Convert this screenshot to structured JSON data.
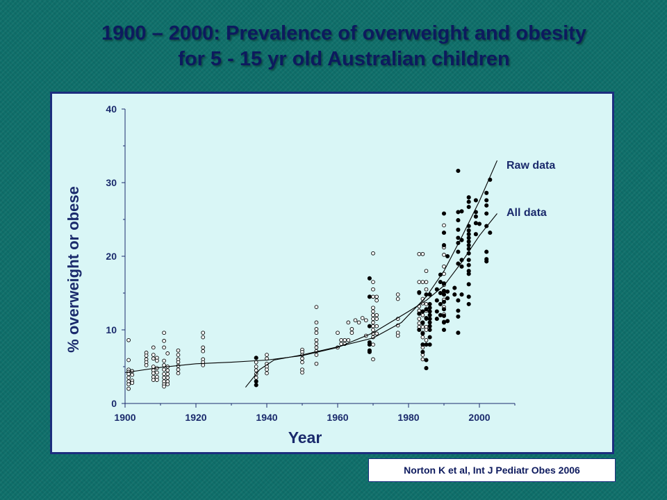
{
  "slide": {
    "title_line1": "1900 – 2000: Prevalence of overweight and obesity",
    "title_line2": "for 5 - 15 yr old Australian children",
    "citation": "Norton K et al, Int J Pediatr Obes 2006"
  },
  "chart_data": {
    "type": "scatter",
    "title": "1900 – 2000: Prevalence of overweight and obesity for 5 - 15 yr old Australian children",
    "xlabel": "Year",
    "ylabel": "% overweight or obese",
    "xlim": [
      1900,
      2010
    ],
    "ylim": [
      0,
      40
    ],
    "x_ticks": [
      1900,
      1920,
      1940,
      1960,
      1980,
      2000
    ],
    "y_ticks": [
      0,
      10,
      20,
      30,
      40
    ],
    "grid": false,
    "colors": {
      "axis": "#1a2a6c",
      "marker": "#000000",
      "curve": "#000000"
    },
    "series": [
      {
        "marker": "open-circle",
        "points": [
          [
            1901,
            8.6
          ],
          [
            1901,
            5.9
          ],
          [
            1901,
            4.6
          ],
          [
            1901,
            4.3
          ],
          [
            1901,
            4.0
          ],
          [
            1901,
            3.5
          ],
          [
            1901,
            3.0
          ],
          [
            1901,
            2.6
          ],
          [
            1901,
            2.0
          ],
          [
            1902,
            4.4
          ],
          [
            1902,
            3.9
          ],
          [
            1902,
            3.1
          ],
          [
            1902,
            2.8
          ],
          [
            1906,
            6.9
          ],
          [
            1906,
            6.5
          ],
          [
            1906,
            6.0
          ],
          [
            1906,
            5.6
          ],
          [
            1906,
            5.2
          ],
          [
            1908,
            7.6
          ],
          [
            1908,
            6.6
          ],
          [
            1908,
            6.1
          ],
          [
            1908,
            5.0
          ],
          [
            1908,
            4.5
          ],
          [
            1908,
            4.1
          ],
          [
            1908,
            3.6
          ],
          [
            1908,
            3.2
          ],
          [
            1909,
            6.2
          ],
          [
            1909,
            5.8
          ],
          [
            1909,
            4.8
          ],
          [
            1909,
            4.2
          ],
          [
            1909,
            3.6
          ],
          [
            1909,
            3.2
          ],
          [
            1911,
            9.6
          ],
          [
            1911,
            8.5
          ],
          [
            1911,
            7.6
          ],
          [
            1911,
            5.8
          ],
          [
            1911,
            5.2
          ],
          [
            1911,
            4.6
          ],
          [
            1911,
            4.0
          ],
          [
            1911,
            3.5
          ],
          [
            1911,
            3.0
          ],
          [
            1911,
            2.6
          ],
          [
            1911,
            2.3
          ],
          [
            1912,
            6.8
          ],
          [
            1912,
            5.0
          ],
          [
            1912,
            4.5
          ],
          [
            1912,
            4.0
          ],
          [
            1912,
            3.5
          ],
          [
            1912,
            3.0
          ],
          [
            1912,
            2.6
          ],
          [
            1915,
            7.2
          ],
          [
            1915,
            6.6
          ],
          [
            1915,
            6.0
          ],
          [
            1915,
            5.6
          ],
          [
            1915,
            5.1
          ],
          [
            1915,
            4.6
          ],
          [
            1915,
            4.1
          ],
          [
            1922,
            9.6
          ],
          [
            1922,
            9.0
          ],
          [
            1922,
            7.6
          ],
          [
            1922,
            7.1
          ],
          [
            1922,
            6.0
          ],
          [
            1922,
            5.6
          ],
          [
            1922,
            5.2
          ],
          [
            1937,
            5.6
          ],
          [
            1937,
            5.0
          ],
          [
            1937,
            4.5
          ],
          [
            1937,
            4.0
          ],
          [
            1937,
            3.5
          ],
          [
            1937,
            3.0
          ],
          [
            1940,
            6.6
          ],
          [
            1940,
            6.1
          ],
          [
            1940,
            5.4
          ],
          [
            1940,
            5.0
          ],
          [
            1940,
            4.6
          ],
          [
            1940,
            4.1
          ],
          [
            1950,
            7.3
          ],
          [
            1950,
            7.0
          ],
          [
            1950,
            6.6
          ],
          [
            1950,
            6.1
          ],
          [
            1950,
            5.6
          ],
          [
            1950,
            4.6
          ],
          [
            1950,
            4.2
          ],
          [
            1954,
            13.1
          ],
          [
            1954,
            11.0
          ],
          [
            1954,
            10.1
          ],
          [
            1954,
            9.6
          ],
          [
            1954,
            8.6
          ],
          [
            1954,
            8.1
          ],
          [
            1954,
            7.6
          ],
          [
            1954,
            7.1
          ],
          [
            1954,
            6.6
          ],
          [
            1954,
            5.4
          ],
          [
            1960,
            9.6
          ],
          [
            1960,
            7.6
          ],
          [
            1961,
            8.6
          ],
          [
            1961,
            8.1
          ],
          [
            1962,
            8.6
          ],
          [
            1962,
            8.1
          ],
          [
            1963,
            11.0
          ],
          [
            1963,
            8.6
          ],
          [
            1964,
            10.1
          ],
          [
            1964,
            9.6
          ],
          [
            1965,
            11.3
          ],
          [
            1966,
            11.0
          ],
          [
            1967,
            11.6
          ],
          [
            1968,
            11.3
          ],
          [
            1968,
            9.2
          ],
          [
            1970,
            20.4
          ],
          [
            1970,
            16.5
          ],
          [
            1970,
            15.5
          ],
          [
            1970,
            14.5
          ],
          [
            1970,
            13.0
          ],
          [
            1970,
            12.5
          ],
          [
            1970,
            12.0
          ],
          [
            1970,
            11.5
          ],
          [
            1970,
            11.0
          ],
          [
            1970,
            10.5
          ],
          [
            1970,
            10.0
          ],
          [
            1970,
            9.5
          ],
          [
            1970,
            9.0
          ],
          [
            1970,
            8.0
          ],
          [
            1970,
            6.0
          ],
          [
            1971,
            14.5
          ],
          [
            1971,
            14.0
          ],
          [
            1971,
            12.0
          ],
          [
            1971,
            11.5
          ],
          [
            1971,
            10.5
          ],
          [
            1971,
            9.5
          ],
          [
            1977,
            14.8
          ],
          [
            1977,
            14.2
          ],
          [
            1977,
            11.5
          ],
          [
            1977,
            10.6
          ],
          [
            1977,
            9.6
          ],
          [
            1977,
            9.2
          ],
          [
            1983,
            20.3
          ],
          [
            1983,
            16.5
          ],
          [
            1983,
            15.0
          ],
          [
            1983,
            13.2
          ],
          [
            1983,
            12.6
          ],
          [
            1983,
            11.5
          ],
          [
            1983,
            10.9
          ],
          [
            1983,
            10.4
          ],
          [
            1984,
            20.3
          ],
          [
            1984,
            16.5
          ],
          [
            1984,
            14.2
          ],
          [
            1984,
            13.6
          ],
          [
            1984,
            12.0
          ],
          [
            1984,
            10.9
          ],
          [
            1984,
            10.4
          ],
          [
            1984,
            9.6
          ],
          [
            1984,
            9.0
          ],
          [
            1984,
            7.6
          ],
          [
            1984,
            6.6
          ],
          [
            1984,
            6.0
          ],
          [
            1985,
            18.0
          ],
          [
            1985,
            16.5
          ],
          [
            1985,
            15.5
          ],
          [
            1985,
            13.5
          ],
          [
            1985,
            12.6
          ],
          [
            1985,
            11.5
          ],
          [
            1985,
            10.4
          ],
          [
            1985,
            10.0
          ],
          [
            1985,
            8.6
          ],
          [
            1990,
            24.2
          ],
          [
            1990,
            23.2
          ],
          [
            1990,
            21.2
          ],
          [
            1990,
            20.2
          ],
          [
            1990,
            18.6
          ],
          [
            1990,
            17.6
          ],
          [
            1990,
            16.1
          ],
          [
            1990,
            15.1
          ],
          [
            1990,
            14.1
          ],
          [
            1990,
            13.1
          ],
          [
            1990,
            12.1
          ],
          [
            1990,
            11.1
          ]
        ]
      },
      {
        "marker": "filled-circle",
        "points": [
          [
            1937,
            6.2
          ],
          [
            1937,
            3.0
          ],
          [
            1937,
            2.5
          ],
          [
            1969,
            17.0
          ],
          [
            1969,
            14.5
          ],
          [
            1969,
            10.5
          ],
          [
            1969,
            8.3
          ],
          [
            1969,
            8.0
          ],
          [
            1969,
            7.2
          ],
          [
            1969,
            7.0
          ],
          [
            1983,
            15.1
          ],
          [
            1983,
            12.2
          ],
          [
            1983,
            10.0
          ],
          [
            1984,
            12.5
          ],
          [
            1984,
            11.0
          ],
          [
            1984,
            9.5
          ],
          [
            1984,
            8.0
          ],
          [
            1984,
            7.0
          ],
          [
            1985,
            14.8
          ],
          [
            1985,
            12.8
          ],
          [
            1985,
            11.6
          ],
          [
            1985,
            8.0
          ],
          [
            1985,
            5.9
          ],
          [
            1985,
            4.8
          ],
          [
            1986,
            14.8
          ],
          [
            1986,
            13.5
          ],
          [
            1986,
            13.0
          ],
          [
            1986,
            12.5
          ],
          [
            1986,
            12.0
          ],
          [
            1986,
            11.5
          ],
          [
            1986,
            11.0
          ],
          [
            1986,
            10.5
          ],
          [
            1986,
            10.0
          ],
          [
            1986,
            9.0
          ],
          [
            1986,
            8.0
          ],
          [
            1988,
            15.5
          ],
          [
            1988,
            14.0
          ],
          [
            1988,
            12.5
          ],
          [
            1988,
            11.5
          ],
          [
            1989,
            17.5
          ],
          [
            1989,
            16.5
          ],
          [
            1989,
            15.0
          ],
          [
            1989,
            13.5
          ],
          [
            1989,
            12.0
          ],
          [
            1990,
            25.8
          ],
          [
            1990,
            23.2
          ],
          [
            1990,
            21.5
          ],
          [
            1990,
            16.3
          ],
          [
            1990,
            15.3
          ],
          [
            1990,
            14.8
          ],
          [
            1990,
            13.8
          ],
          [
            1990,
            12.8
          ],
          [
            1990,
            11.9
          ],
          [
            1990,
            11.0
          ],
          [
            1990,
            10.0
          ],
          [
            1991,
            20.0
          ],
          [
            1991,
            15.2
          ],
          [
            1991,
            14.3
          ],
          [
            1991,
            11.2
          ],
          [
            1993,
            15.7
          ],
          [
            1993,
            14.8
          ],
          [
            1994,
            31.6
          ],
          [
            1994,
            26.0
          ],
          [
            1994,
            24.9
          ],
          [
            1994,
            23.6
          ],
          [
            1994,
            22.5
          ],
          [
            1994,
            21.8
          ],
          [
            1994,
            20.6
          ],
          [
            1994,
            19.0
          ],
          [
            1994,
            14.0
          ],
          [
            1994,
            12.6
          ],
          [
            1994,
            11.8
          ],
          [
            1994,
            9.6
          ],
          [
            1995,
            26.1
          ],
          [
            1995,
            22.2
          ],
          [
            1995,
            19.5
          ],
          [
            1995,
            18.6
          ],
          [
            1995,
            14.8
          ],
          [
            1997,
            28.0
          ],
          [
            1997,
            27.4
          ],
          [
            1997,
            26.7
          ],
          [
            1997,
            24.1
          ],
          [
            1997,
            23.5
          ],
          [
            1997,
            23.0
          ],
          [
            1997,
            22.5
          ],
          [
            1997,
            22.0
          ],
          [
            1997,
            21.5
          ],
          [
            1997,
            21.0
          ],
          [
            1997,
            20.4
          ],
          [
            1997,
            19.5
          ],
          [
            1997,
            18.8
          ],
          [
            1997,
            18.0
          ],
          [
            1997,
            17.6
          ],
          [
            1997,
            16.2
          ],
          [
            1997,
            14.5
          ],
          [
            1997,
            13.5
          ],
          [
            1999,
            27.6
          ],
          [
            1999,
            26.0
          ],
          [
            1999,
            25.4
          ],
          [
            1999,
            24.5
          ],
          [
            1999,
            23.0
          ],
          [
            2000,
            24.4
          ],
          [
            2002,
            28.6
          ],
          [
            2002,
            27.6
          ],
          [
            2002,
            26.9
          ],
          [
            2002,
            25.8
          ],
          [
            2002,
            24.1
          ],
          [
            2002,
            20.6
          ],
          [
            2002,
            19.6
          ],
          [
            2002,
            19.3
          ],
          [
            2003,
            30.4
          ],
          [
            2003,
            23.2
          ]
        ]
      }
    ],
    "curves": [
      {
        "name": "Raw data",
        "points": [
          [
            1934,
            2.2
          ],
          [
            1938,
            4.6
          ],
          [
            1942,
            5.9
          ],
          [
            1950,
            6.6
          ],
          [
            1960,
            7.7
          ],
          [
            1970,
            8.9
          ],
          [
            1978,
            11.0
          ],
          [
            1985,
            14.5
          ],
          [
            1990,
            18.0
          ],
          [
            1995,
            22.6
          ],
          [
            2000,
            27.5
          ],
          [
            2005,
            33.0
          ]
        ]
      },
      {
        "name": "All data",
        "points": [
          [
            1900,
            4.2
          ],
          [
            1910,
            4.9
          ],
          [
            1920,
            5.4
          ],
          [
            1930,
            5.6
          ],
          [
            1940,
            5.9
          ],
          [
            1950,
            6.5
          ],
          [
            1960,
            7.6
          ],
          [
            1970,
            9.6
          ],
          [
            1980,
            12.5
          ],
          [
            1985,
            14.0
          ],
          [
            1990,
            16.0
          ],
          [
            1995,
            19.2
          ],
          [
            2000,
            22.8
          ],
          [
            2005,
            25.8
          ]
        ]
      }
    ],
    "annotations": [
      "Raw data",
      "All data"
    ]
  }
}
